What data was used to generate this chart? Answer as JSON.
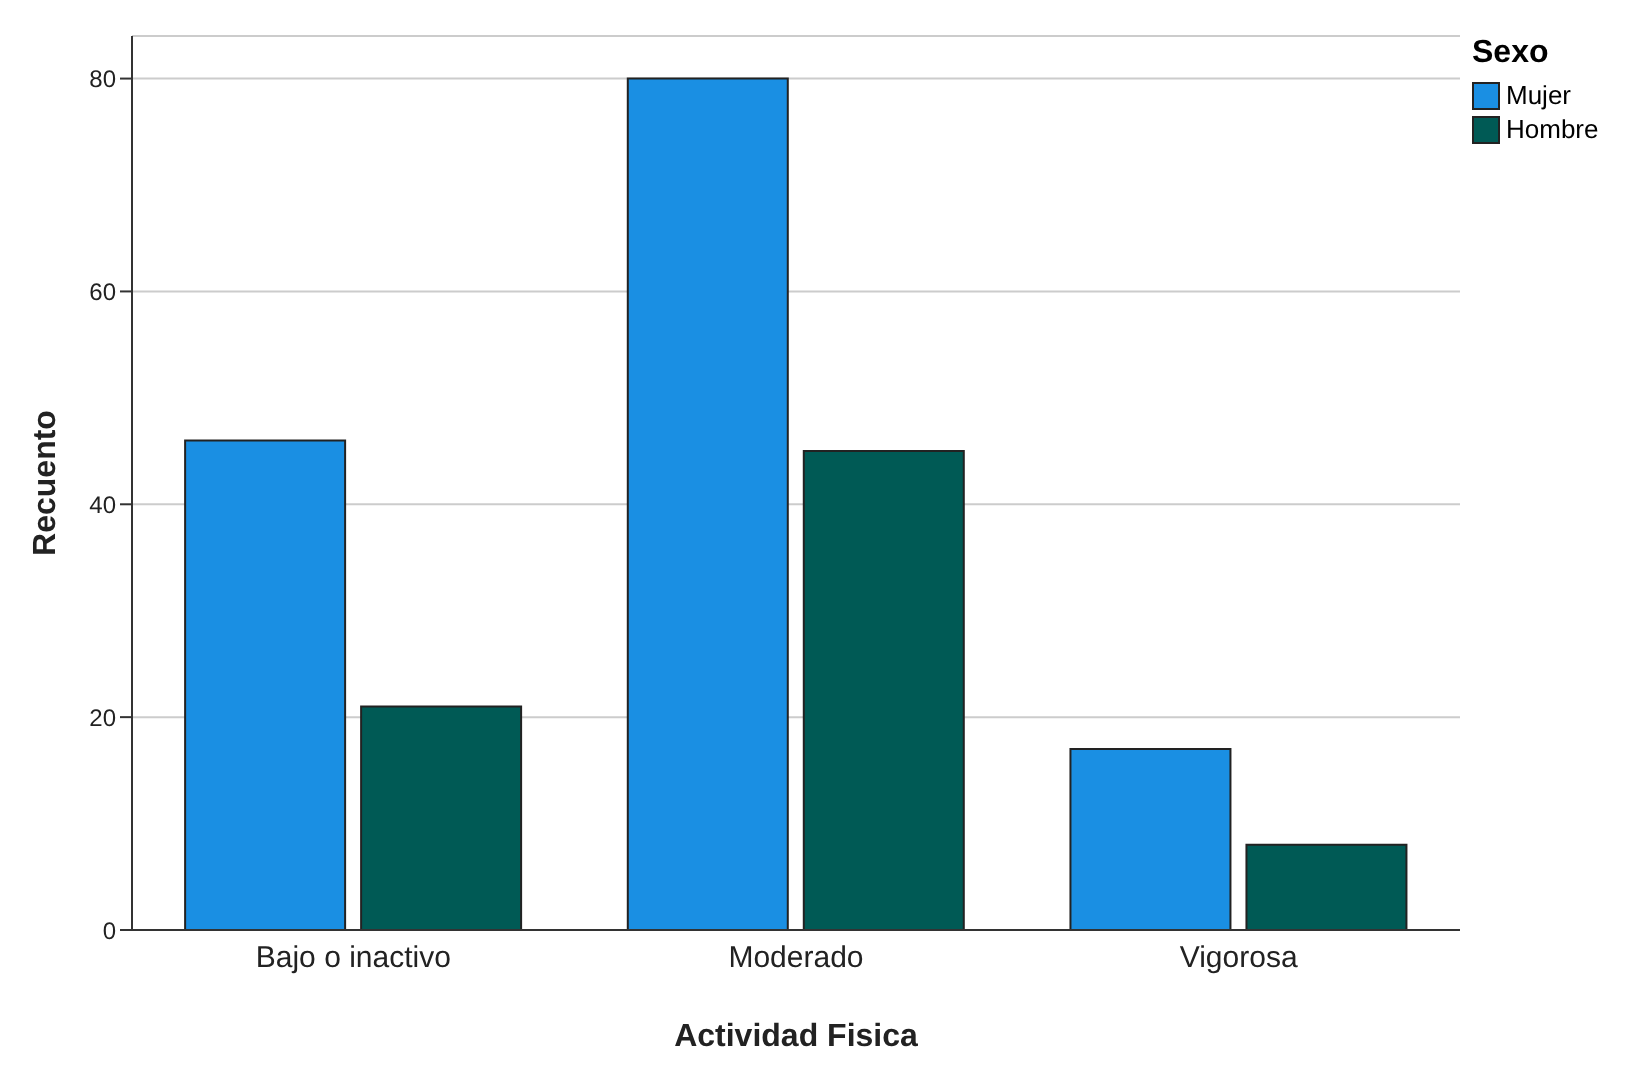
{
  "chart_data": {
    "type": "bar",
    "xlabel": "Actividad Fisica",
    "ylabel": "Recuento",
    "legend_title": "Sexo",
    "categories": [
      "Bajo o inactivo",
      "Moderado",
      "Vigorosa"
    ],
    "series": [
      {
        "name": "Mujer",
        "color": "#1a8fe3",
        "values": [
          46,
          80,
          17
        ]
      },
      {
        "name": "Hombre",
        "color": "#005a55",
        "values": [
          21,
          45,
          8
        ]
      }
    ],
    "ylim": [
      0,
      84
    ],
    "yticks": [
      0,
      20,
      40,
      60,
      80
    ],
    "grid": "y",
    "legend": "top right"
  }
}
